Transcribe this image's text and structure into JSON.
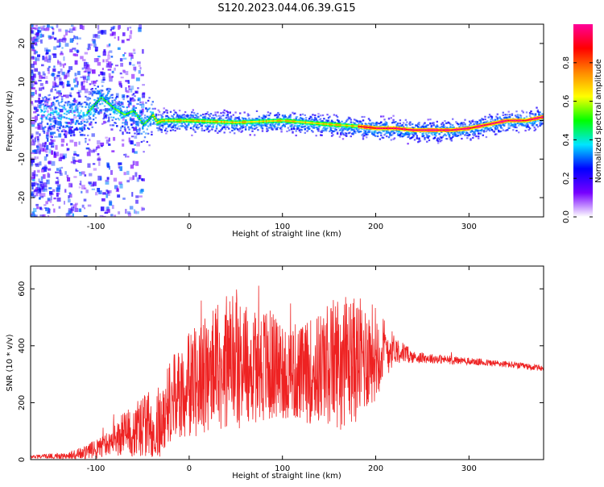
{
  "figure": {
    "title": "S120.2023.044.06.39.G15"
  },
  "chart_data": [
    {
      "type": "heatmap",
      "xlabel": "Height of straight line (km)",
      "ylabel": "Frequency (Hz)",
      "xlim": [
        -170,
        380
      ],
      "ylim": [
        -25,
        25
      ],
      "x_ticks": [
        -100,
        0,
        100,
        200,
        300
      ],
      "y_ticks": [
        -20,
        -10,
        0,
        10,
        20
      ],
      "colorbar": {
        "label": "Normalized spectral amplitude",
        "range": [
          0,
          1
        ],
        "ticks": [
          "0.0",
          "0.2",
          "0.4",
          "0.6",
          "0.8"
        ],
        "colors": [
          "#ffffff",
          "#7700ff",
          "#0000ff",
          "#00e5ff",
          "#00ff00",
          "#ffff00",
          "#ff8800",
          "#ff0000",
          "#ff0099"
        ]
      },
      "ridge": {
        "x": [
          -110,
          -95,
          -80,
          -70,
          -60,
          -50,
          -45,
          -40,
          -35,
          -30,
          -20,
          0,
          50,
          100,
          150,
          180,
          200,
          220,
          240,
          260,
          280,
          300,
          320,
          340,
          360,
          380
        ],
        "y": [
          2,
          6,
          3,
          1.5,
          2.5,
          -1,
          0,
          1.5,
          -0.5,
          0,
          0,
          0,
          -0.5,
          0,
          -1,
          -1.5,
          -2,
          -2,
          -2.5,
          -2.5,
          -2.5,
          -2,
          -1,
          0,
          0,
          1
        ]
      }
    },
    {
      "type": "line",
      "xlabel": "Height of straight line (km)",
      "ylabel": "SNR (10 * v/v)",
      "xlim": [
        -170,
        380
      ],
      "ylim": [
        0,
        680
      ],
      "x_ticks": [
        -100,
        0,
        100,
        200,
        300
      ],
      "y_ticks": [
        0,
        200,
        400,
        600
      ],
      "color": "#ee2222",
      "envelope": {
        "x": [
          -170,
          -130,
          -110,
          -90,
          -70,
          -50,
          -30,
          -20,
          0,
          20,
          40,
          60,
          80,
          100,
          120,
          140,
          160,
          180,
          200,
          220,
          240,
          260,
          280,
          300,
          340,
          380
        ],
        "mean": [
          10,
          15,
          25,
          50,
          90,
          120,
          130,
          210,
          260,
          300,
          340,
          340,
          330,
          320,
          300,
          320,
          350,
          350,
          380,
          390,
          360,
          355,
          350,
          345,
          335,
          320
        ],
        "spread": [
          6,
          15,
          30,
          50,
          90,
          130,
          150,
          170,
          220,
          260,
          280,
          270,
          250,
          220,
          200,
          240,
          280,
          260,
          200,
          60,
          25,
          20,
          18,
          15,
          14,
          12
        ]
      }
    }
  ]
}
